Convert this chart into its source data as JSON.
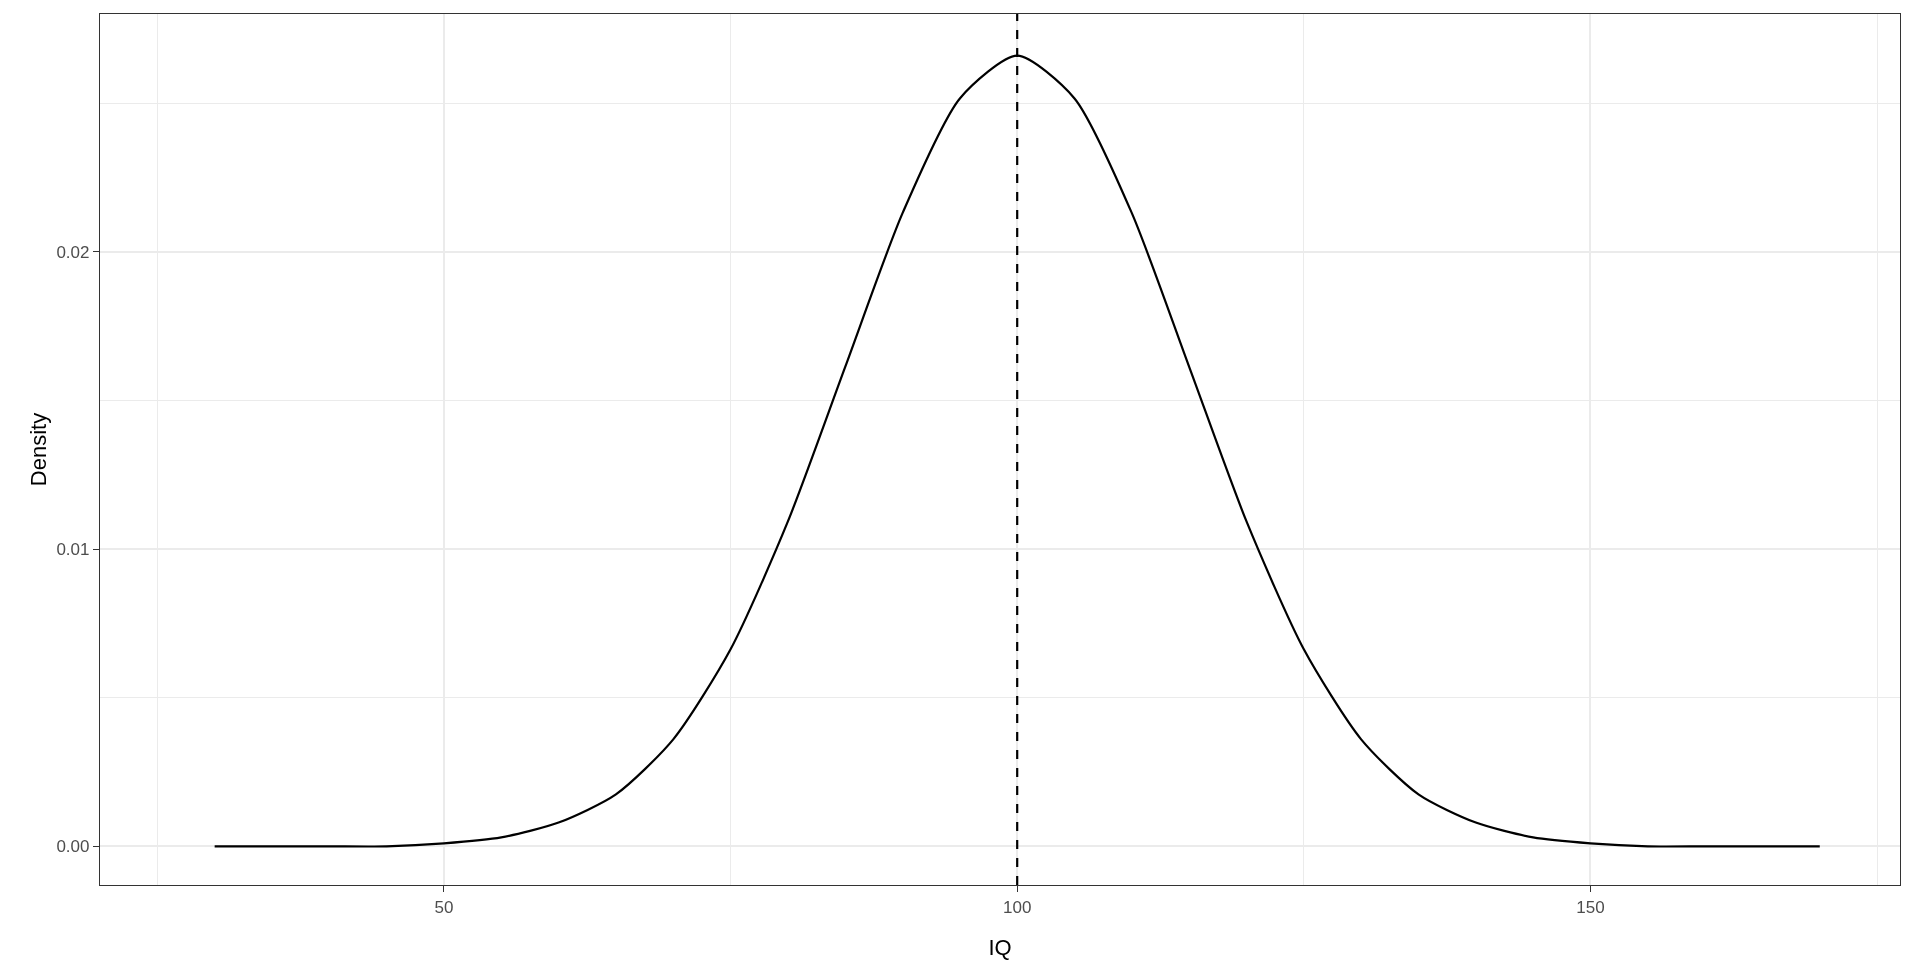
{
  "chart_data": {
    "type": "line",
    "xlabel": "IQ",
    "ylabel": "Density",
    "x": [
      30,
      35,
      40,
      45,
      50,
      55,
      60,
      65,
      70,
      75,
      80,
      85,
      90,
      95,
      100,
      105,
      110,
      115,
      120,
      125,
      130,
      135,
      140,
      145,
      150,
      155,
      160,
      165,
      170
    ],
    "series": [
      {
        "color": "#000000",
        "values": [
          0,
          0,
          0,
          0,
          0.0001,
          0.0003,
          0.0008,
          0.00175,
          0.0036,
          0.00663,
          0.01093,
          0.01613,
          0.0213,
          0.02516,
          0.0266,
          0.02516,
          0.0213,
          0.01613,
          0.01093,
          0.00663,
          0.0036,
          0.00175,
          0.0008,
          0.0003,
          0.0001,
          0,
          0,
          0,
          0
        ]
      }
    ],
    "xlim": [
      20,
      177
    ],
    "ylim": [
      -0.0013,
      0.028
    ],
    "xticks": [
      {
        "value": 25,
        "label": null
      },
      50,
      {
        "value": 75,
        "label": null
      },
      100,
      {
        "value": 125,
        "label": null
      },
      150,
      {
        "value": 175,
        "label": null
      }
    ],
    "yticks": [
      {
        "value": 0,
        "label": "0.00"
      },
      {
        "value": 0.005,
        "label": null
      },
      0.01,
      {
        "value": 0.015,
        "label": null
      },
      0.02,
      {
        "value": 0.025,
        "label": null
      }
    ],
    "ref_lines": [
      {
        "axis": "x",
        "value": 100,
        "color": "#000000",
        "line_style": "dashed"
      }
    ],
    "grid": true,
    "marker": "none",
    "line_style": "solid"
  }
}
